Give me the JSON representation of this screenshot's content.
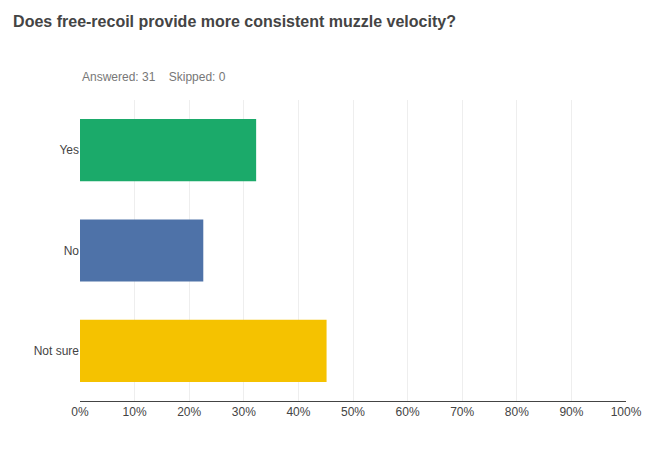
{
  "chart_data": {
    "type": "bar",
    "orientation": "horizontal",
    "title": "Does free-recoil provide more consistent muzzle velocity?",
    "subtitle": "Answered: 31    Skipped: 0",
    "categories": [
      "Not sure",
      "No",
      "Yes"
    ],
    "values": [
      45.16,
      22.58,
      32.26
    ],
    "colors": [
      "#F5C200",
      "#4E72A8",
      "#1BAA6A"
    ],
    "xlim": [
      0,
      100
    ],
    "xticks": [
      {
        "value": 0,
        "label": "0%"
      },
      {
        "value": 10,
        "label": "10%"
      },
      {
        "value": 20,
        "label": "20%"
      },
      {
        "value": 30,
        "label": "30%"
      },
      {
        "value": 40,
        "label": "40%"
      },
      {
        "value": 50,
        "label": "50%"
      },
      {
        "value": 60,
        "label": "60%"
      },
      {
        "value": 70,
        "label": "70%"
      },
      {
        "value": 80,
        "label": "80%"
      },
      {
        "value": 90,
        "label": "90%"
      },
      {
        "value": 100,
        "label": "100%"
      }
    ],
    "grid": true
  }
}
